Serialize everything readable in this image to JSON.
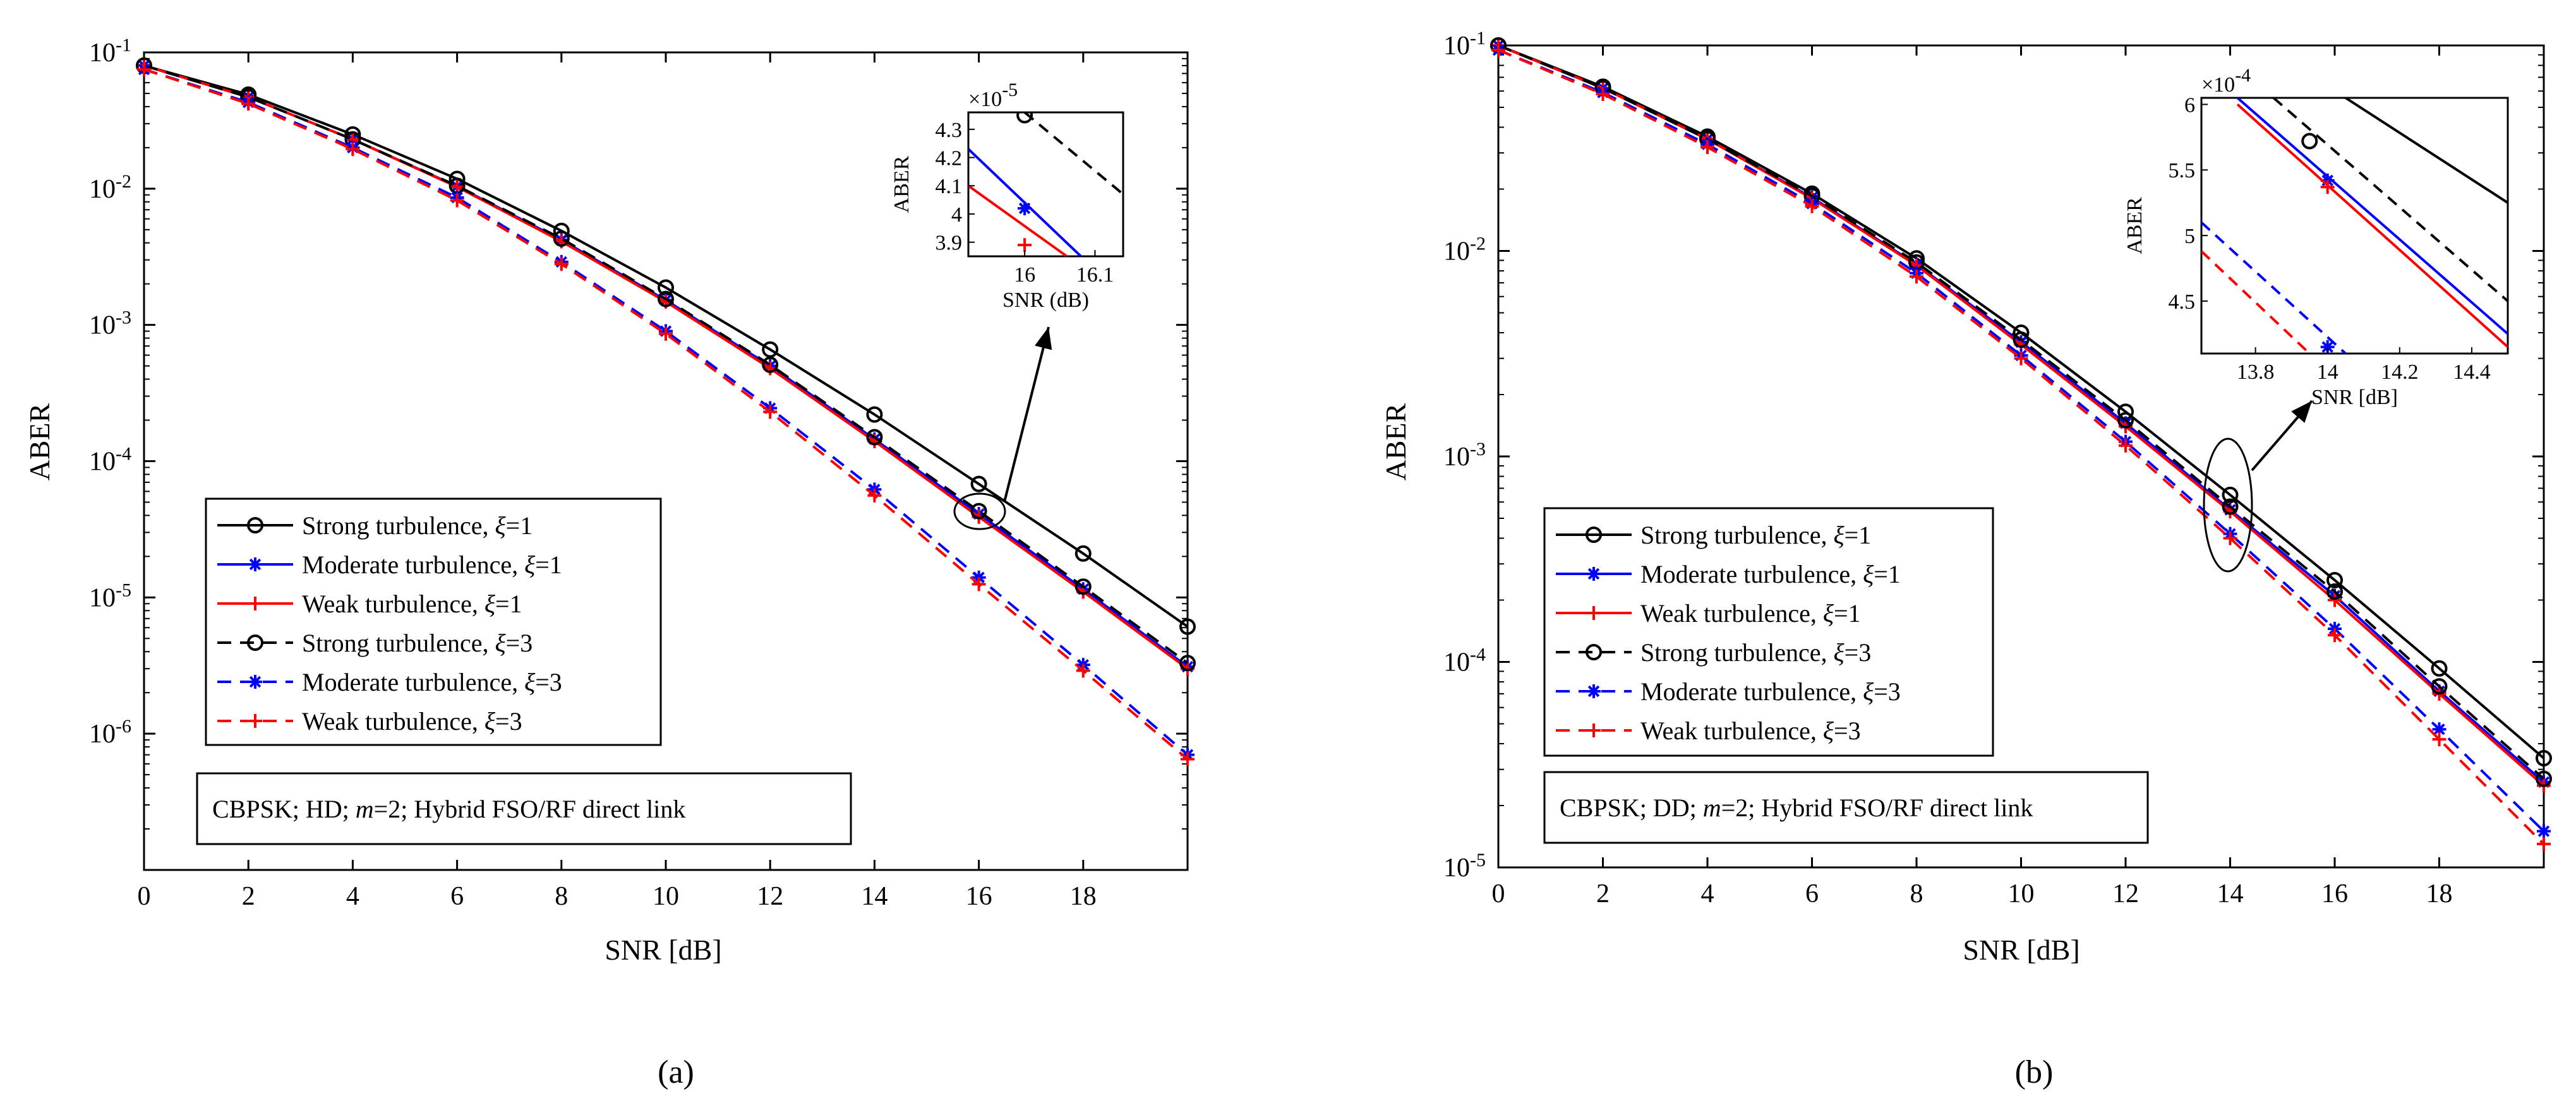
{
  "chart_data": [
    {
      "type": "line",
      "panel_label": "(a)",
      "xlabel": "SNR [dB]",
      "ylabel": "ABER",
      "yscale": "log",
      "xlim": [
        0,
        20
      ],
      "ylim_exp": [
        -7,
        -1
      ],
      "x_ticks": [
        "0",
        "2",
        "4",
        "6",
        "8",
        "10",
        "12",
        "14",
        "16",
        "18"
      ],
      "y_ticks": [
        {
          "base": "10",
          "exp": "-1"
        },
        {
          "base": "10",
          "exp": "-2"
        },
        {
          "base": "10",
          "exp": "-3"
        },
        {
          "base": "10",
          "exp": "-4"
        },
        {
          "base": "10",
          "exp": "-5"
        },
        {
          "base": "10",
          "exp": "-6"
        }
      ],
      "x": [
        0,
        2,
        4,
        6,
        8,
        10,
        12,
        14,
        16,
        18,
        20
      ],
      "annotation": "CBPSK; HD; m=2; Hybrid FSO/RF direct link",
      "annotation_parts": [
        "CBPSK; HD; ",
        "m",
        "=2; Hybrid FSO/RF direct link"
      ],
      "series": [
        {
          "name": "Strong turbulence, ξ=1",
          "legend_prefix": "Strong turbulence, ",
          "color": "#000000",
          "dash": false,
          "marker": "circle",
          "values": [
            0.08,
            0.049,
            0.025,
            0.0118,
            0.0049,
            0.00188,
            0.00066,
            0.00022,
            6.8e-05,
            2.1e-05,
            6.1e-06
          ]
        },
        {
          "name": "Moderate turbulence, ξ=1",
          "legend_prefix": "Moderate turbulence, ",
          "color": "#0000ff",
          "dash": false,
          "marker": "star",
          "values": [
            0.08,
            0.047,
            0.023,
            0.0104,
            0.0042,
            0.00152,
            0.0005,
            0.000145,
            4.1e-05,
            1.15e-05,
            3.1e-06
          ]
        },
        {
          "name": "Weak turbulence, ξ=1",
          "legend_prefix": "Weak turbulence, ",
          "color": "#ff0000",
          "dash": false,
          "marker": "plus",
          "values": [
            0.08,
            0.047,
            0.023,
            0.0103,
            0.0041,
            0.00148,
            0.00048,
            0.00014,
            3.9e-05,
            1.1e-05,
            3e-06
          ]
        },
        {
          "name": "Strong turbulence, ξ=3",
          "legend_prefix": "Strong turbulence, ",
          "color": "#000000",
          "dash": true,
          "marker": "circle",
          "values": [
            0.08,
            0.047,
            0.023,
            0.0105,
            0.0043,
            0.00155,
            0.00051,
            0.00015,
            4.3e-05,
            1.2e-05,
            3.3e-06
          ]
        },
        {
          "name": "Moderate turbulence, ξ=3",
          "legend_prefix": "Moderate turbulence, ",
          "color": "#0000ff",
          "dash": true,
          "marker": "star",
          "values": [
            0.075,
            0.043,
            0.02,
            0.0086,
            0.0029,
            0.0009,
            0.000245,
            6.2e-05,
            1.4e-05,
            3.2e-06,
            7e-07
          ]
        },
        {
          "name": "Weak turbulence, ξ=3",
          "legend_prefix": "Weak turbulence, ",
          "color": "#ff0000",
          "dash": true,
          "marker": "plus",
          "values": [
            0.075,
            0.042,
            0.0195,
            0.0082,
            0.0028,
            0.00086,
            0.00023,
            5.6e-05,
            1.25e-05,
            2.9e-06,
            6.5e-07
          ]
        }
      ],
      "inset": {
        "xlabel": "SNR (dB)",
        "ylabel": "ABER",
        "multiplier": {
          "base": "×10",
          "exp": "-5"
        },
        "x_ticks": [
          "16",
          "16.1"
        ],
        "y_ticks": [
          "4.3",
          "4.2",
          "4.1",
          "4",
          "3.9"
        ],
        "xlim": [
          15.92,
          16.14
        ],
        "ylim": [
          3.85,
          4.36
        ],
        "series": [
          {
            "color": "#000000",
            "dash": true,
            "marker": "circle",
            "x": [
              16.0,
              16.14
            ],
            "y": [
              4.36,
              4.07
            ],
            "marker_x": 16.0,
            "marker_y": 4.35
          },
          {
            "color": "#0000ff",
            "dash": false,
            "marker": "star",
            "x": [
              15.92,
              16.08
            ],
            "y": [
              4.23,
              3.85
            ],
            "marker_x": 16.0,
            "marker_y": 4.02
          },
          {
            "color": "#ff0000",
            "dash": false,
            "marker": "plus",
            "x": [
              15.92,
              16.06
            ],
            "y": [
              4.1,
              3.85
            ],
            "marker_x": 16.0,
            "marker_y": 3.89
          }
        ]
      }
    },
    {
      "type": "line",
      "panel_label": "(b)",
      "xlabel": "SNR [dB]",
      "ylabel": "ABER",
      "yscale": "log",
      "xlim": [
        0,
        20
      ],
      "ylim_exp": [
        -5,
        -1
      ],
      "x_ticks": [
        "0",
        "2",
        "4",
        "6",
        "8",
        "10",
        "12",
        "14",
        "16",
        "18"
      ],
      "y_ticks": [
        {
          "base": "10",
          "exp": "-1"
        },
        {
          "base": "10",
          "exp": "-2"
        },
        {
          "base": "10",
          "exp": "-3"
        },
        {
          "base": "10",
          "exp": "-4"
        },
        {
          "base": "10",
          "exp": "-5"
        }
      ],
      "x": [
        0,
        2,
        4,
        6,
        8,
        10,
        12,
        14,
        16,
        18,
        20
      ],
      "annotation": "CBPSK; DD; m=2; Hybrid FSO/RF direct link",
      "annotation_parts": [
        "CBPSK; DD; ",
        "m",
        "=2; Hybrid FSO/RF direct link"
      ],
      "series": [
        {
          "name": "Strong turbulence, ξ=1",
          "legend_prefix": "Strong turbulence, ",
          "color": "#000000",
          "dash": false,
          "marker": "circle",
          "values": [
            0.1,
            0.063,
            0.036,
            0.019,
            0.0092,
            0.004,
            0.00165,
            0.00065,
            0.00025,
            9.3e-05,
            3.4e-05
          ]
        },
        {
          "name": "Moderate turbulence, ξ=1",
          "legend_prefix": "Moderate turbulence, ",
          "color": "#0000ff",
          "dash": false,
          "marker": "star",
          "values": [
            0.1,
            0.062,
            0.035,
            0.0182,
            0.0086,
            0.0036,
            0.00145,
            0.00055,
            0.00021,
            7.2e-05,
            2.6e-05
          ]
        },
        {
          "name": "Weak turbulence, ξ=1",
          "legend_prefix": "Weak turbulence, ",
          "color": "#ff0000",
          "dash": false,
          "marker": "plus",
          "values": [
            0.1,
            0.062,
            0.035,
            0.018,
            0.0085,
            0.0035,
            0.0014,
            0.00054,
            0.0002,
            7e-05,
            2.5e-05
          ]
        },
        {
          "name": "Strong turbulence, ξ=3",
          "legend_prefix": "Strong turbulence, ",
          "color": "#000000",
          "dash": true,
          "marker": "circle",
          "values": [
            0.1,
            0.062,
            0.035,
            0.0185,
            0.0088,
            0.0037,
            0.0015,
            0.00057,
            0.00022,
            7.6e-05,
            2.7e-05
          ]
        },
        {
          "name": "Moderate turbulence, ξ=3",
          "legend_prefix": "Moderate turbulence, ",
          "color": "#0000ff",
          "dash": true,
          "marker": "star",
          "values": [
            0.095,
            0.059,
            0.033,
            0.017,
            0.0078,
            0.0031,
            0.00118,
            0.00042,
            0.000145,
            4.7e-05,
            1.5e-05
          ]
        },
        {
          "name": "Weak turbulence, ξ=3",
          "legend_prefix": "Weak turbulence, ",
          "color": "#ff0000",
          "dash": true,
          "marker": "plus",
          "values": [
            0.095,
            0.058,
            0.032,
            0.0165,
            0.0075,
            0.003,
            0.00113,
            0.0004,
            0.000135,
            4.2e-05,
            1.3e-05
          ]
        }
      ],
      "inset": {
        "xlabel": "SNR [dB]",
        "ylabel": "ABER",
        "multiplier": {
          "base": "×10",
          "exp": "-4"
        },
        "x_ticks": [
          "13.8",
          "14",
          "14.2",
          "14.4"
        ],
        "y_ticks": [
          "6",
          "5.5",
          "5",
          "4.5"
        ],
        "xlim": [
          13.65,
          14.5
        ],
        "ylim": [
          4.1,
          6.05
        ],
        "series": [
          {
            "color": "#000000",
            "dash": false,
            "marker": "none",
            "x": [
              14.05,
              14.5
            ],
            "y": [
              6.05,
              5.25
            ],
            "marker_x": null,
            "marker_y": null
          },
          {
            "color": "#000000",
            "dash": true,
            "marker": "circle",
            "x": [
              13.85,
              14.5
            ],
            "y": [
              6.05,
              4.5
            ],
            "marker_x": 13.95,
            "marker_y": 5.72
          },
          {
            "color": "#0000ff",
            "dash": false,
            "marker": "star",
            "x": [
              13.75,
              14.5
            ],
            "y": [
              6.05,
              4.25
            ],
            "marker_x": 14.0,
            "marker_y": 5.42
          },
          {
            "color": "#ff0000",
            "dash": false,
            "marker": "plus",
            "x": [
              13.75,
              14.5
            ],
            "y": [
              6.0,
              4.15
            ],
            "marker_x": 14.0,
            "marker_y": 5.37
          },
          {
            "color": "#0000ff",
            "dash": true,
            "marker": "star",
            "x": [
              13.65,
              14.05
            ],
            "y": [
              5.1,
              4.1
            ],
            "marker_x": 14.0,
            "marker_y": 4.15
          },
          {
            "color": "#ff0000",
            "dash": true,
            "marker": "plus",
            "x": [
              13.65,
              13.95
            ],
            "y": [
              4.88,
              4.1
            ],
            "marker_x": null,
            "marker_y": null
          }
        ]
      }
    }
  ]
}
